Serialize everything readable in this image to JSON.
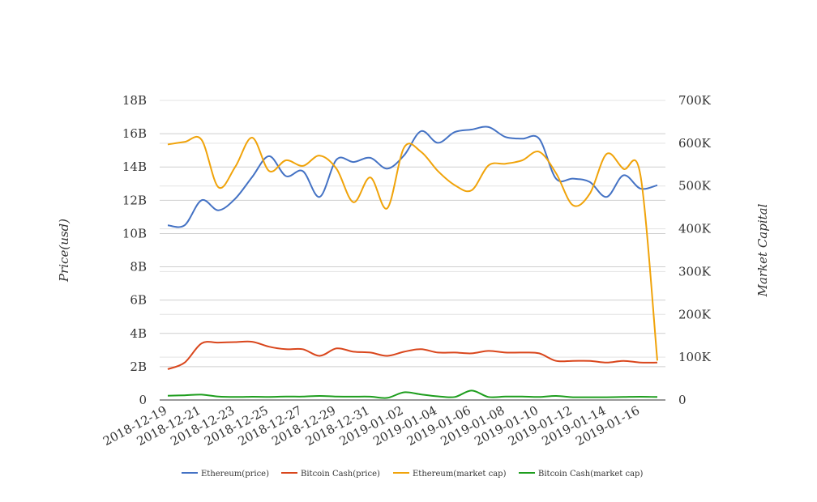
{
  "chart_data": {
    "type": "line",
    "title": "",
    "ylabel_left": "Price(usd)",
    "ylabel_right": "Market Capital",
    "y_left_ticks": [
      "0",
      "2B",
      "4B",
      "6B",
      "8B",
      "10B",
      "12B",
      "14B",
      "16B",
      "18B"
    ],
    "y_right_ticks": [
      "0",
      "100K",
      "200K",
      "300K",
      "400K",
      "500K",
      "600K",
      "700K"
    ],
    "x_tick_labels": [
      "2018-12-19",
      "2018-12-21",
      "2018-12-23",
      "2018-12-25",
      "2018-12-27",
      "2018-12-29",
      "2018-12-31",
      "2019-01-02",
      "2019-01-04",
      "2019-01-06",
      "2019-01-08",
      "2019-01-10",
      "2019-01-12",
      "2019-01-14",
      "2019-01-16"
    ],
    "y_left_range": [
      0,
      18000000000
    ],
    "y_right_range": [
      0,
      700000
    ],
    "grid": true,
    "legend_position": "bottom",
    "x": [
      "2018-12-19",
      "2018-12-20",
      "2018-12-21",
      "2018-12-22",
      "2018-12-23",
      "2018-12-24",
      "2018-12-25",
      "2018-12-26",
      "2018-12-27",
      "2018-12-28",
      "2018-12-29",
      "2018-12-30",
      "2018-12-31",
      "2019-01-01",
      "2019-01-02",
      "2019-01-03",
      "2019-01-04",
      "2019-01-05",
      "2019-01-06",
      "2019-01-07",
      "2019-01-08",
      "2019-01-09",
      "2019-01-10",
      "2019-01-11",
      "2019-01-12",
      "2019-01-13",
      "2019-01-14",
      "2019-01-15",
      "2019-01-16",
      "2019-01-17"
    ],
    "series": [
      {
        "name": "Ethereum(price)",
        "color": "#4472c4",
        "axis": "left",
        "values": [
          10500000000,
          10500000000,
          12000000000,
          11400000000,
          12100000000,
          13400000000,
          14650000000,
          13450000000,
          13750000000,
          12200000000,
          14450000000,
          14300000000,
          14550000000,
          13900000000,
          14700000000,
          16150000000,
          15450000000,
          16100000000,
          16250000000,
          16400000000,
          15800000000,
          15700000000,
          15700000000,
          13300000000,
          13300000000,
          13100000000,
          12200000000,
          13500000000,
          12700000000,
          12900000000
        ]
      },
      {
        "name": "Bitcoin Cash(price)",
        "color": "#d9461c",
        "axis": "left",
        "values": [
          1850000000,
          2250000000,
          3400000000,
          3450000000,
          3480000000,
          3500000000,
          3200000000,
          3050000000,
          3050000000,
          2650000000,
          3100000000,
          2900000000,
          2850000000,
          2650000000,
          2900000000,
          3050000000,
          2850000000,
          2850000000,
          2800000000,
          2950000000,
          2850000000,
          2850000000,
          2800000000,
          2350000000,
          2350000000,
          2350000000,
          2250000000,
          2350000000,
          2250000000,
          2250000000
        ]
      },
      {
        "name": "Ethereum(market cap)",
        "color": "#f0a30a",
        "axis": "right",
        "values": [
          597000,
          603000,
          608000,
          497000,
          545000,
          613000,
          535000,
          560000,
          547000,
          571000,
          540000,
          462000,
          520000,
          448000,
          590000,
          580000,
          535000,
          502000,
          490000,
          548000,
          552000,
          560000,
          580000,
          530000,
          455000,
          482000,
          575000,
          540000,
          525000,
          92000
        ]
      },
      {
        "name": "Bitcoin Cash(market cap)",
        "color": "#1e9e1e",
        "axis": "right",
        "values": [
          10000,
          11000,
          12500,
          8000,
          7000,
          7500,
          7200,
          8000,
          8000,
          9500,
          8000,
          7800,
          7800,
          5000,
          18000,
          13000,
          8500,
          7000,
          22000,
          7000,
          8000,
          8000,
          7000,
          9500,
          6500,
          6500,
          6500,
          7000,
          7500,
          7000
        ]
      }
    ]
  }
}
